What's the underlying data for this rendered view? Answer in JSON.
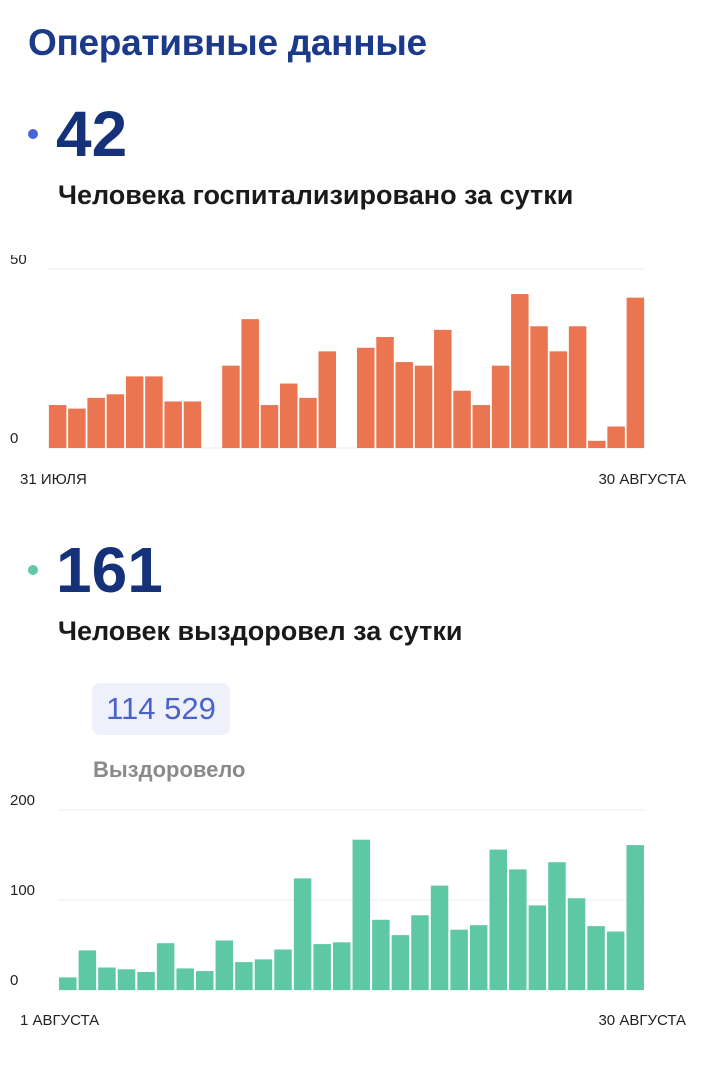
{
  "header": {
    "title": "Оперативные данные"
  },
  "hospitalized": {
    "value": "42",
    "caption": "Человека госпитализировано за сутки",
    "dot_color": "#4a62d8"
  },
  "recovered": {
    "value": "161",
    "caption": "Человек выздоровел за сутки",
    "dot_color": "#5ec9a2",
    "total_value": "114 529",
    "total_label": "Выздоровело"
  },
  "chart_data": [
    {
      "type": "bar",
      "color": "#ea7550",
      "ylim": [
        0,
        50
      ],
      "yticks": [
        "0",
        "50"
      ],
      "x_start_label": "31 ИЮЛЯ",
      "x_end_label": "30 АВГУСТА",
      "values": [
        12,
        11,
        14,
        15,
        20,
        20,
        13,
        13,
        0,
        23,
        36,
        12,
        18,
        14,
        27,
        0,
        28,
        31,
        24,
        23,
        33,
        16,
        12,
        23,
        43,
        34,
        27,
        34,
        2,
        6,
        42
      ]
    },
    {
      "type": "bar",
      "color": "#5ec8a4",
      "ylim": [
        0,
        200
      ],
      "yticks": [
        "0",
        "100",
        "200"
      ],
      "x_start_label": "1 АВГУСТА",
      "x_end_label": "30 АВГУСТА",
      "values": [
        14,
        44,
        25,
        23,
        20,
        52,
        24,
        21,
        55,
        31,
        34,
        45,
        124,
        51,
        53,
        167,
        78,
        61,
        83,
        116,
        67,
        72,
        156,
        134,
        94,
        142,
        102,
        71,
        65,
        161
      ]
    }
  ]
}
